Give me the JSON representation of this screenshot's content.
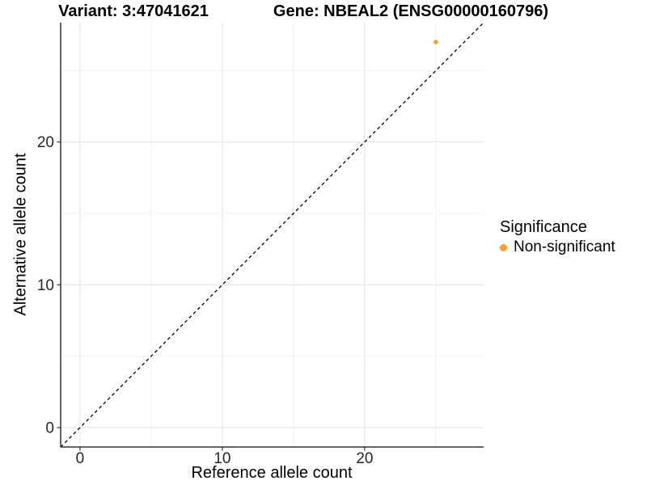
{
  "titles": {
    "variant": "Variant: 3:47041621",
    "gene": "Gene: NBEAL2 (ENSG00000160796)"
  },
  "axes": {
    "x_label": "Reference allele count",
    "y_label": "Alternative allele count"
  },
  "legend": {
    "title": "Significance",
    "position": "right",
    "items": [
      {
        "label": "Non-significant",
        "color": "#F9A232"
      }
    ]
  },
  "colors": {
    "point": "#F9A232",
    "identity_line": "#000000",
    "axis_line": "#333333",
    "tick_mark": "#333333",
    "tick_label": "#262626",
    "grid_major": "#e6e6e6",
    "grid_minor": "#f2f2f2",
    "background": "#ffffff"
  },
  "chart_data": {
    "type": "scatter",
    "title": "Variant: 3:47041621 | Gene: NBEAL2 (ENSG00000160796)",
    "xlabel": "Reference allele count",
    "ylabel": "Alternative allele count",
    "xlim": [
      -1.36,
      28.36
    ],
    "ylim": [
      -1.36,
      28.36
    ],
    "x_major_ticks": [
      0,
      10,
      20
    ],
    "x_minor_ticks": [
      5,
      15,
      25
    ],
    "y_major_ticks": [
      0,
      10,
      20
    ],
    "y_minor_ticks": [
      5,
      15,
      25
    ],
    "grid": true,
    "legend_position": "right",
    "series": [
      {
        "name": "Non-significant",
        "color": "#F9A232",
        "points": [
          {
            "x": 25,
            "y": 27
          }
        ]
      }
    ],
    "reference_line": {
      "kind": "abline",
      "slope": 1,
      "intercept": 0,
      "style": "dashed",
      "color": "#000000"
    }
  }
}
